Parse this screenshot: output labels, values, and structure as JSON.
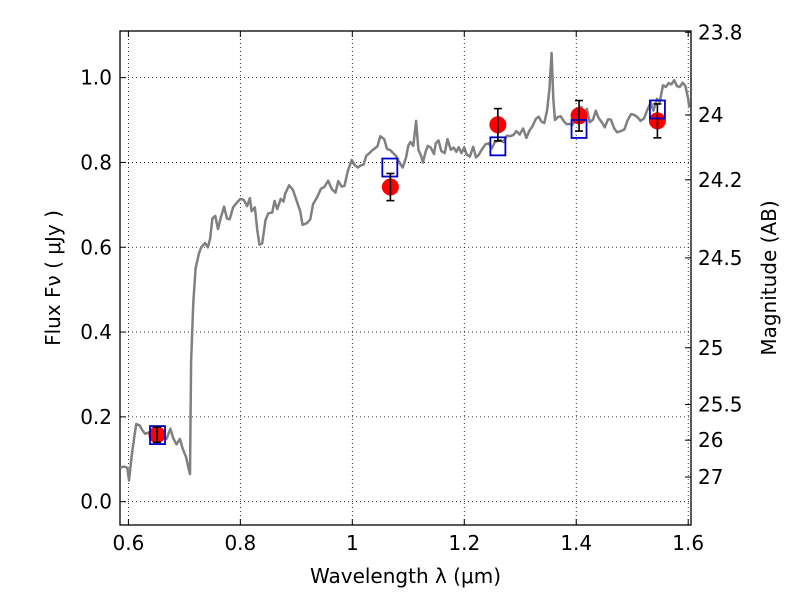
{
  "chart_data": {
    "type": "scatter",
    "xlabel": "Wavelength  λ (μm)",
    "ylabel": "Flux  Fν  ( μJy )",
    "y2label": "Magnitude (AB)",
    "xlim": [
      0.585,
      1.605
    ],
    "ylim": [
      -0.055,
      1.11
    ],
    "xticks": [
      {
        "v": 0.6,
        "label": "0.6"
      },
      {
        "v": 0.8,
        "label": "0.8"
      },
      {
        "v": 1.0,
        "label": "1"
      },
      {
        "v": 1.2,
        "label": "1.2"
      },
      {
        "v": 1.4,
        "label": "1.4"
      },
      {
        "v": 1.6,
        "label": "1.6"
      }
    ],
    "yticks": [
      {
        "v": 0.0,
        "label": "0.0"
      },
      {
        "v": 0.2,
        "label": "0.2"
      },
      {
        "v": 0.4,
        "label": "0.4"
      },
      {
        "v": 0.6,
        "label": "0.6"
      },
      {
        "v": 0.8,
        "label": "0.8"
      },
      {
        "v": 1.0,
        "label": "1.0"
      }
    ],
    "mag_ticks": [
      {
        "label": "23.8",
        "flux": 1.107
      },
      {
        "label": "24",
        "flux": 0.912
      },
      {
        "label": "24.2",
        "flux": 0.759
      },
      {
        "label": "24.5",
        "flux": 0.575
      },
      {
        "label": "25",
        "flux": 0.363
      },
      {
        "label": "25.5",
        "flux": 0.229
      },
      {
        "label": "26",
        "flux": 0.145
      },
      {
        "label": "27",
        "flux": 0.058
      }
    ],
    "grid": true,
    "series": [
      {
        "role": "model-spectrum",
        "color": "#808080",
        "points": [
          [
            0.585,
            0.08
          ],
          [
            0.592,
            0.083
          ],
          [
            0.598,
            0.08
          ],
          [
            0.601,
            0.05
          ],
          [
            0.606,
            0.11
          ],
          [
            0.611,
            0.158
          ],
          [
            0.614,
            0.183
          ],
          [
            0.62,
            0.18
          ],
          [
            0.625,
            0.168
          ],
          [
            0.63,
            0.16
          ],
          [
            0.64,
            0.165
          ],
          [
            0.65,
            0.16
          ],
          [
            0.66,
            0.162
          ],
          [
            0.668,
            0.148
          ],
          [
            0.675,
            0.172
          ],
          [
            0.68,
            0.15
          ],
          [
            0.686,
            0.135
          ],
          [
            0.692,
            0.148
          ],
          [
            0.697,
            0.125
          ],
          [
            0.703,
            0.105
          ],
          [
            0.708,
            0.075
          ],
          [
            0.71,
            0.065
          ],
          [
            0.712,
            0.33
          ],
          [
            0.716,
            0.47
          ],
          [
            0.72,
            0.55
          ],
          [
            0.726,
            0.585
          ],
          [
            0.73,
            0.6
          ],
          [
            0.737,
            0.61
          ],
          [
            0.742,
            0.6
          ],
          [
            0.746,
            0.62
          ],
          [
            0.75,
            0.668
          ],
          [
            0.755,
            0.674
          ],
          [
            0.76,
            0.643
          ],
          [
            0.765,
            0.67
          ],
          [
            0.771,
            0.696
          ],
          [
            0.776,
            0.668
          ],
          [
            0.781,
            0.666
          ],
          [
            0.787,
            0.694
          ],
          [
            0.793,
            0.704
          ],
          [
            0.8,
            0.714
          ],
          [
            0.806,
            0.712
          ],
          [
            0.812,
            0.697
          ],
          [
            0.817,
            0.716
          ],
          [
            0.82,
            0.685
          ],
          [
            0.826,
            0.694
          ],
          [
            0.83,
            0.642
          ],
          [
            0.834,
            0.606
          ],
          [
            0.839,
            0.609
          ],
          [
            0.845,
            0.664
          ],
          [
            0.85,
            0.68
          ],
          [
            0.857,
            0.682
          ],
          [
            0.861,
            0.709
          ],
          [
            0.866,
            0.69
          ],
          [
            0.872,
            0.714
          ],
          [
            0.877,
            0.708
          ],
          [
            0.88,
            0.726
          ],
          [
            0.887,
            0.746
          ],
          [
            0.894,
            0.735
          ],
          [
            0.9,
            0.712
          ],
          [
            0.907,
            0.684
          ],
          [
            0.911,
            0.653
          ],
          [
            0.919,
            0.657
          ],
          [
            0.925,
            0.666
          ],
          [
            0.93,
            0.702
          ],
          [
            0.937,
            0.718
          ],
          [
            0.944,
            0.738
          ],
          [
            0.95,
            0.742
          ],
          [
            0.957,
            0.757
          ],
          [
            0.963,
            0.738
          ],
          [
            0.97,
            0.729
          ],
          [
            0.975,
            0.756
          ],
          [
            0.981,
            0.743
          ],
          [
            0.986,
            0.745
          ],
          [
            0.992,
            0.78
          ],
          [
            0.999,
            0.806
          ],
          [
            1.004,
            0.794
          ],
          [
            1.01,
            0.788
          ],
          [
            1.015,
            0.793
          ],
          [
            1.02,
            0.795
          ],
          [
            1.025,
            0.816
          ],
          [
            1.03,
            0.821
          ],
          [
            1.035,
            0.828
          ],
          [
            1.04,
            0.833
          ],
          [
            1.045,
            0.838
          ],
          [
            1.05,
            0.862
          ],
          [
            1.057,
            0.855
          ],
          [
            1.062,
            0.832
          ],
          [
            1.068,
            0.829
          ],
          [
            1.073,
            0.822
          ],
          [
            1.079,
            0.814
          ],
          [
            1.084,
            0.8
          ],
          [
            1.09,
            0.788
          ],
          [
            1.096,
            0.812
          ],
          [
            1.1,
            0.84
          ],
          [
            1.104,
            0.848
          ],
          [
            1.109,
            0.839
          ],
          [
            1.114,
            0.898
          ],
          [
            1.118,
            0.83
          ],
          [
            1.123,
            0.815
          ],
          [
            1.126,
            0.8
          ],
          [
            1.131,
            0.826
          ],
          [
            1.135,
            0.839
          ],
          [
            1.14,
            0.835
          ],
          [
            1.146,
            0.82
          ],
          [
            1.149,
            0.845
          ],
          [
            1.154,
            0.852
          ],
          [
            1.159,
            0.827
          ],
          [
            1.165,
            0.822
          ],
          [
            1.17,
            0.855
          ],
          [
            1.176,
            0.83
          ],
          [
            1.181,
            0.835
          ],
          [
            1.186,
            0.825
          ],
          [
            1.19,
            0.836
          ],
          [
            1.195,
            0.822
          ],
          [
            1.2,
            0.836
          ],
          [
            1.204,
            0.819
          ],
          [
            1.21,
            0.814
          ],
          [
            1.216,
            0.837
          ],
          [
            1.221,
            0.812
          ],
          [
            1.226,
            0.818
          ],
          [
            1.232,
            0.832
          ],
          [
            1.238,
            0.843
          ],
          [
            1.244,
            0.845
          ],
          [
            1.249,
            0.833
          ],
          [
            1.255,
            0.849
          ],
          [
            1.26,
            0.851
          ],
          [
            1.265,
            0.852
          ],
          [
            1.27,
            0.848
          ],
          [
            1.276,
            0.863
          ],
          [
            1.282,
            0.862
          ],
          [
            1.288,
            0.865
          ],
          [
            1.293,
            0.874
          ],
          [
            1.299,
            0.866
          ],
          [
            1.305,
            0.88
          ],
          [
            1.311,
            0.858
          ],
          [
            1.316,
            0.874
          ],
          [
            1.322,
            0.886
          ],
          [
            1.328,
            0.903
          ],
          [
            1.333,
            0.908
          ],
          [
            1.338,
            0.896
          ],
          [
            1.343,
            0.893
          ],
          [
            1.348,
            0.923
          ],
          [
            1.352,
            0.972
          ],
          [
            1.356,
            1.058
          ],
          [
            1.359,
            0.95
          ],
          [
            1.362,
            0.9
          ],
          [
            1.367,
            0.907
          ],
          [
            1.372,
            0.909
          ],
          [
            1.378,
            0.897
          ],
          [
            1.383,
            0.89
          ],
          [
            1.388,
            0.891
          ],
          [
            1.393,
            0.888
          ],
          [
            1.398,
            0.898
          ],
          [
            1.404,
            0.913
          ],
          [
            1.409,
            0.931
          ],
          [
            1.414,
            0.915
          ],
          [
            1.419,
            0.926
          ],
          [
            1.424,
            0.895
          ],
          [
            1.43,
            0.901
          ],
          [
            1.435,
            0.922
          ],
          [
            1.44,
            0.905
          ],
          [
            1.446,
            0.894
          ],
          [
            1.451,
            0.883
          ],
          [
            1.457,
            0.902
          ],
          [
            1.462,
            0.901
          ],
          [
            1.468,
            0.88
          ],
          [
            1.473,
            0.871
          ],
          [
            1.48,
            0.874
          ],
          [
            1.486,
            0.878
          ],
          [
            1.492,
            0.9
          ],
          [
            1.498,
            0.914
          ],
          [
            1.504,
            0.912
          ],
          [
            1.51,
            0.906
          ],
          [
            1.515,
            0.898
          ],
          [
            1.521,
            0.904
          ],
          [
            1.527,
            0.924
          ],
          [
            1.533,
            0.941
          ],
          [
            1.538,
            0.922
          ],
          [
            1.544,
            0.95
          ],
          [
            1.549,
            0.942
          ],
          [
            1.555,
            0.982
          ],
          [
            1.56,
            0.978
          ],
          [
            1.565,
            0.987
          ],
          [
            1.57,
            0.984
          ],
          [
            1.575,
            0.994
          ],
          [
            1.58,
            0.98
          ],
          [
            1.585,
            0.978
          ],
          [
            1.59,
            0.988
          ],
          [
            1.595,
            0.98
          ],
          [
            1.6,
            0.95
          ],
          [
            1.602,
            0.93
          ]
        ]
      },
      {
        "role": "model-photometry",
        "marker": "open-square",
        "color": "#0000cc",
        "points": [
          [
            0.652,
            0.157
          ],
          [
            1.067,
            0.788
          ],
          [
            1.26,
            0.838
          ],
          [
            1.405,
            0.879
          ],
          [
            1.545,
            0.925
          ]
        ]
      },
      {
        "role": "observed-photometry",
        "marker": "filled-circle",
        "color": "#ff0000",
        "points": [
          {
            "x": 0.651,
            "y": 0.158,
            "err": 0.018
          },
          {
            "x": 1.068,
            "y": 0.742,
            "err": 0.032
          },
          {
            "x": 1.26,
            "y": 0.889,
            "err": 0.038
          },
          {
            "x": 1.405,
            "y": 0.91,
            "err": 0.036
          },
          {
            "x": 1.545,
            "y": 0.898,
            "err": 0.04
          }
        ]
      }
    ]
  }
}
